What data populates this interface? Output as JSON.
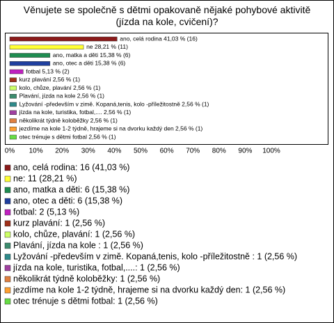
{
  "chart_data": {
    "type": "bar",
    "orientation": "horizontal",
    "title": "Věnujete se společně s dětmi opakovaně nějaké pohybové aktivitě (jízda na kole, cvičení)?",
    "values": [
      41.03,
      28.21,
      15.38,
      15.38,
      5.13,
      2.56,
      2.56,
      2.56,
      2.56,
      2.56,
      2.56,
      2.56,
      2.56
    ],
    "counts": [
      16,
      11,
      6,
      6,
      2,
      1,
      1,
      1,
      1,
      1,
      1,
      1,
      1
    ],
    "value_labels": [
      "ano, celá rodina 41,03 % (16)",
      "ne 28,21 % (11)",
      "ano, matka a děti 15,38 % (6)",
      "ano, otec a děti 15,38 % (6)",
      "fotbal 5,13 % (2)",
      "kurz plavání 2,56 % (1)",
      "kolo, chůze, plavání 2,56 % (1)",
      "Plavání, jízda na kole  2,56 % (1)",
      "Lyžování -především v zimě.  Kopaná,tenis, kolo -příležitostně  2,56 % (1)",
      "jízda na kole, turistika, fotbal,.... 2,56 % (1)",
      "několikrát týdně koloběžky 2,56 % (1)",
      "jezdíme na kole 1-2 týdně, hrajeme si na dvorku každý den 2,56 % (1)",
      "otec trénuje s dětmi fotbal 2,56 % (1)"
    ],
    "legend_labels": [
      "ano, celá rodina: 16 (41,03 %)",
      "ne: 11 (28,21 %)",
      "ano, matka a děti: 6 (15,38 %)",
      "ano, otec a děti: 6 (15,38 %)",
      "fotbal: 2 (5,13 %)",
      "kurz plavání: 1 (2,56 %)",
      "kolo, chůze, plavání: 1 (2,56 %)",
      "Plavání, jízda na kole : 1 (2,56 %)",
      "Lyžování -především v zimě.  Kopaná,tenis, kolo -příležitostně : 1 (2,56 %)",
      "jízda na kole, turistika, fotbal,....: 1 (2,56 %)",
      "několikrát týdně koloběžky: 1 (2,56 %)",
      "jezdíme na kole 1-2 týdně, hrajeme si na dvorku každý den: 1 (2,56 %)",
      "otec trénuje s dětmi fotbal: 1 (2,56 %)"
    ],
    "colors": [
      "#8b1a1a",
      "#ffff33",
      "#1e8c50",
      "#1f3f9f",
      "#c020c0",
      "#a0301a",
      "#ccff66",
      "#3c8c6e",
      "#2e8b8b",
      "#a040a0",
      "#e08040",
      "#ffa030",
      "#66dd44"
    ],
    "xlim": [
      0,
      100
    ],
    "xticks": [
      {
        "value": 0,
        "label": "0%"
      },
      {
        "value": 10,
        "label": "10%"
      },
      {
        "value": 20,
        "label": "20%"
      },
      {
        "value": 30,
        "label": "30%"
      },
      {
        "value": 40,
        "label": "40%"
      },
      {
        "value": 50,
        "label": "50%"
      },
      {
        "value": 60,
        "label": "60%"
      },
      {
        "value": 70,
        "label": "70%"
      },
      {
        "value": 80,
        "label": "80%"
      },
      {
        "value": 90,
        "label": "90%"
      },
      {
        "value": 100,
        "label": "100%"
      }
    ]
  }
}
